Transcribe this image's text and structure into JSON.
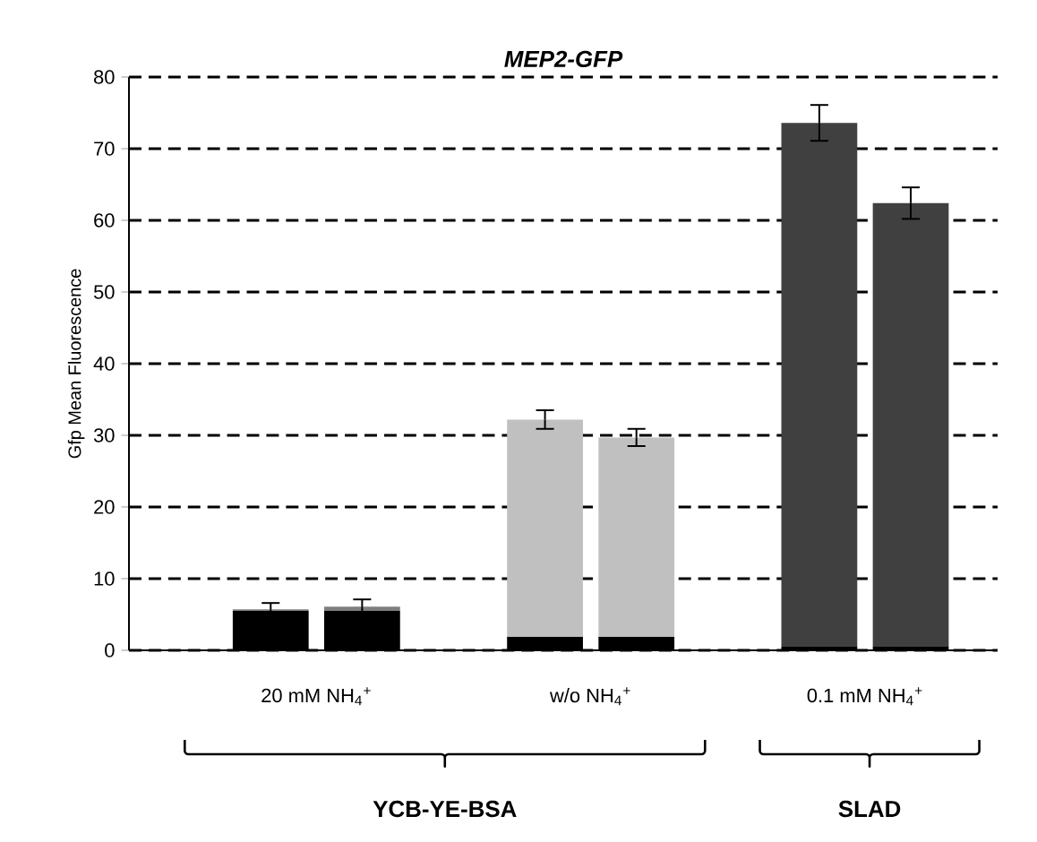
{
  "chart_data": {
    "type": "bar",
    "title": "MEP2-GFP",
    "ylabel": "Gfp Mean Fluorescence",
    "categories": [
      null,
      null,
      null,
      null,
      null,
      null,
      null,
      null,
      null
    ],
    "stacked": true,
    "series": [
      {
        "color": "#000000",
        "values": [
          null,
          5.5,
          5.5,
          null,
          1.9,
          1.9,
          null,
          0.6,
          0.6
        ]
      },
      {
        "colors": [
          null,
          "#7f7f7f",
          "#7f7f7f",
          null,
          "#c0c0c0",
          "#c0c0c0",
          null,
          "#404040",
          "#404040"
        ],
        "values": [
          null,
          0.2,
          0.6,
          null,
          30.3,
          27.8,
          null,
          73.0,
          61.8
        ],
        "errors": [
          null,
          0.9,
          1.0,
          null,
          1.3,
          1.2,
          null,
          2.5,
          2.2
        ]
      }
    ],
    "ylim": [
      0,
      80
    ],
    "yticks": [
      0,
      10,
      20,
      30,
      40,
      50,
      60,
      70,
      80
    ],
    "grid": "y",
    "annotations": [
      "20 mM NH$_{4}$$^{+}$",
      "w/o NH$_{4}$$^{+}$",
      "0.1 mM NH$_{4}$$^{+}$",
      "YCB-YE-BSA",
      "SLAD"
    ]
  }
}
